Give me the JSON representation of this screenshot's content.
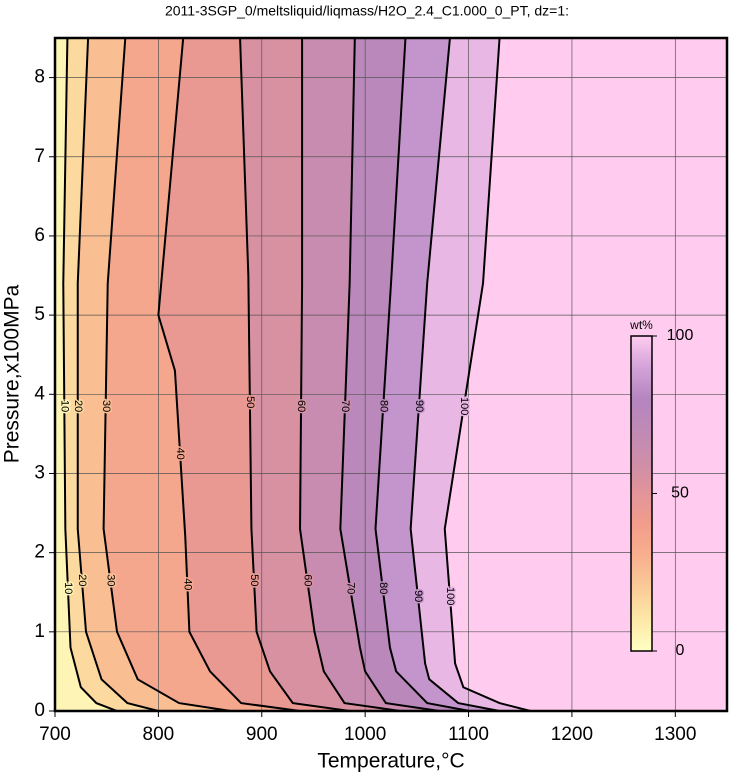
{
  "chart_data": {
    "type": "contour",
    "title": "2011-3SGP_0/meltsliquid/liqmass/H2O_2.4_C1.000_0_PT, dz=1:",
    "x_label": "Temperature,°C",
    "y_label": "Pressure,x100MPa",
    "xlim": [
      700,
      1350
    ],
    "ylim": [
      0,
      8.5
    ],
    "xticks": [
      700,
      800,
      900,
      1000,
      1100,
      1200,
      1300
    ],
    "yticks": [
      0,
      1,
      2,
      3,
      4,
      5,
      6,
      7,
      8
    ],
    "grid": true,
    "colorbar": {
      "label": "wt%",
      "lim": [
        0,
        100
      ],
      "ticks": [
        0,
        50,
        100
      ],
      "colors": [
        "#ffffc4",
        "#fde8a6",
        "#fbcb98",
        "#f8b08e",
        "#f29d8b",
        "#e29499",
        "#ce8ea9",
        "#bf8ab5",
        "#b585c0",
        "#d3a2d8",
        "#ffccf0"
      ]
    },
    "contours": [
      {
        "level": 10,
        "x": [
          760,
          740,
          725,
          715,
          710,
          708,
          712
        ],
        "y": [
          0,
          0.1,
          0.3,
          0.8,
          2.3,
          5.4,
          8.5
        ]
      },
      {
        "level": 20,
        "x": [
          800,
          770,
          745,
          730,
          722,
          722,
          732
        ],
        "y": [
          0,
          0.1,
          0.4,
          1,
          2.3,
          5.4,
          8.5
        ]
      },
      {
        "level": 30,
        "x": [
          870,
          820,
          780,
          760,
          747,
          751,
          768
        ],
        "y": [
          0,
          0.1,
          0.4,
          1,
          2.3,
          5.4,
          8.5
        ]
      },
      {
        "level": 40,
        "x": [
          937,
          880,
          850,
          830,
          826,
          816,
          800,
          824
        ],
        "y": [
          0,
          0.1,
          0.5,
          1,
          2.2,
          4.3,
          5,
          8.5
        ]
      },
      {
        "level": 50,
        "x": [
          985,
          930,
          908,
          895,
          890,
          887,
          879
        ],
        "y": [
          0,
          0.1,
          0.5,
          1,
          2.3,
          5.5,
          8.5
        ]
      },
      {
        "level": 60,
        "x": [
          1034,
          980,
          960,
          951,
          937,
          939,
          939
        ],
        "y": [
          0,
          0.1,
          0.5,
          1,
          2.3,
          5.4,
          8.5
        ]
      },
      {
        "level": 70,
        "x": [
          1072,
          1020,
          1000,
          995,
          976,
          985,
          990
        ],
        "y": [
          0,
          0.1,
          0.5,
          0.8,
          2.3,
          5.4,
          8.5
        ]
      },
      {
        "level": 80,
        "x": [
          1101,
          1060,
          1030,
          1024,
          1010,
          1025,
          1039
        ],
        "y": [
          0,
          0.1,
          0.5,
          0.8,
          2.3,
          5.4,
          8.5
        ]
      },
      {
        "level": 90,
        "x": [
          1130,
          1090,
          1062,
          1058,
          1044,
          1060,
          1082
        ],
        "y": [
          0,
          0.1,
          0.4,
          0.6,
          2.3,
          5.4,
          8.5
        ]
      },
      {
        "level": 100,
        "x": [
          1160,
          1130,
          1095,
          1087,
          1077,
          1114,
          1130
        ],
        "y": [
          0,
          0.1,
          0.3,
          0.6,
          2.3,
          5.4,
          8.5
        ]
      }
    ]
  }
}
